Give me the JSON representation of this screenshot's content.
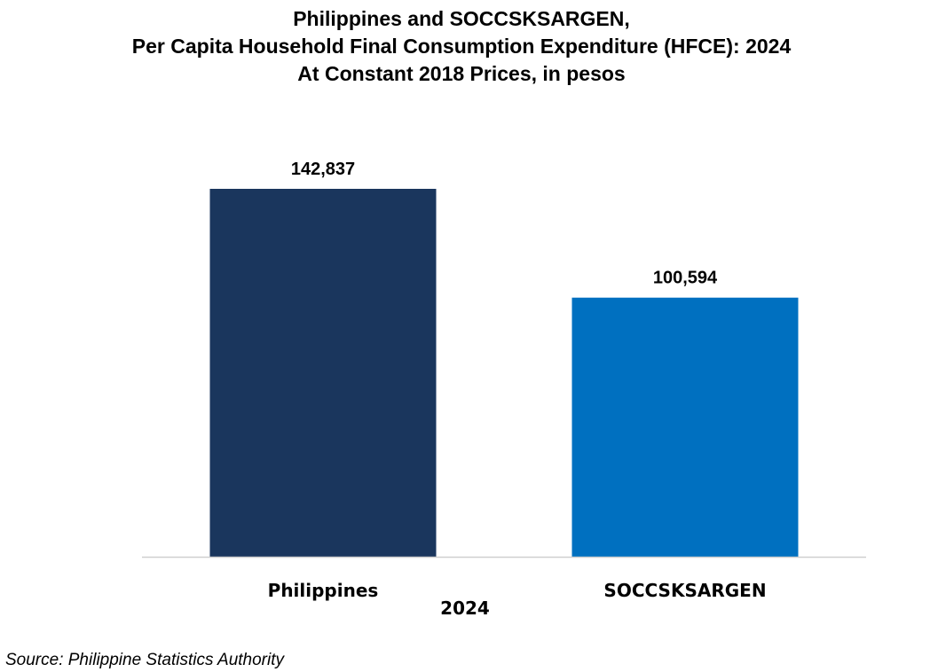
{
  "chart_data": {
    "type": "bar",
    "title_lines": [
      "Philippines and SOCCSKSARGEN,",
      "Per Capita Household Final Consumption Expenditure (HFCE): 2024",
      "At Constant 2018 Prices, in pesos"
    ],
    "categories": [
      "Philippines",
      "SOCCSKSARGEN"
    ],
    "values": [
      142837,
      100594
    ],
    "value_labels": [
      "142,837",
      "100,594"
    ],
    "colors": [
      "#1a365d",
      "#0070c0"
    ],
    "xlabel": "2024",
    "ylabel": "",
    "ylim": [
      0,
      150000
    ],
    "grid": false,
    "legend": "none"
  },
  "source": "Source: Philippine Statistics Authority"
}
